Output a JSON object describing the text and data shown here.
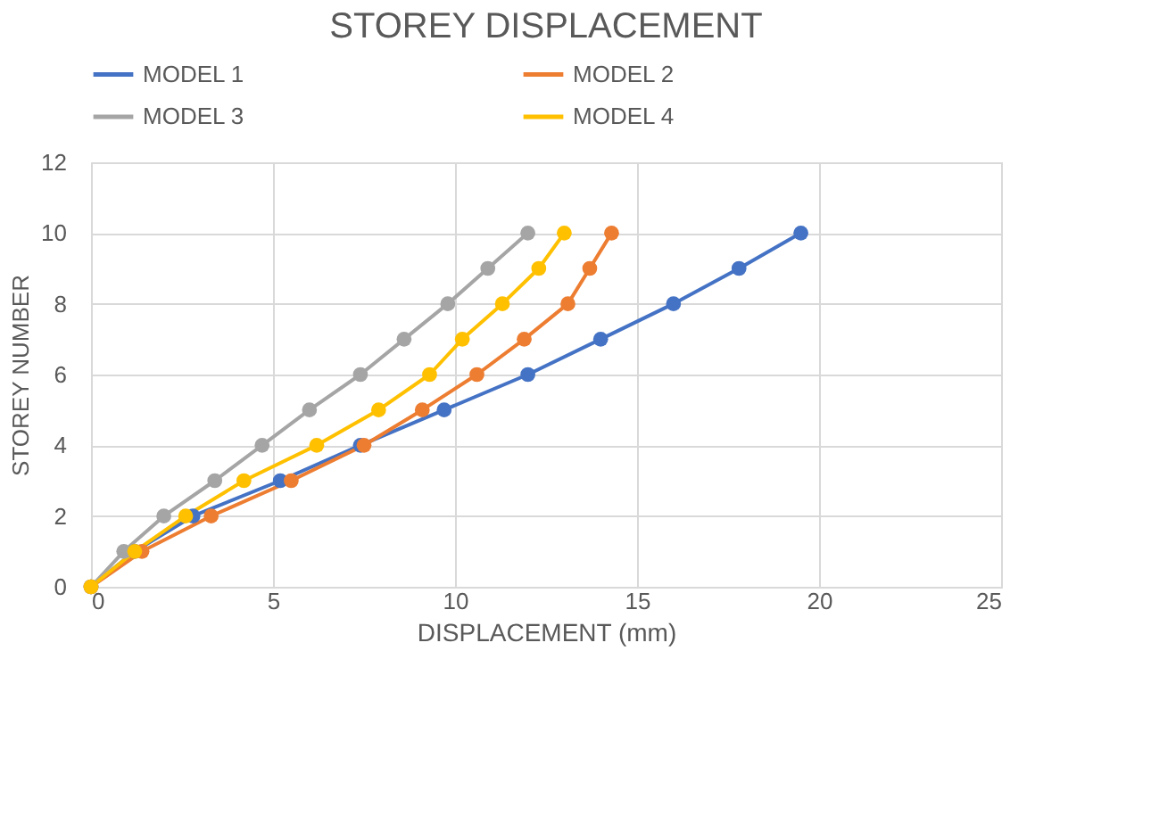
{
  "chart_data": {
    "type": "line",
    "title": "STOREY DISPLACEMENT",
    "xlabel": "DISPLACEMENT  (mm)",
    "ylabel": "STOREY NUMBER",
    "xlim": [
      0,
      25
    ],
    "xticks": [
      0,
      5,
      10,
      15,
      20,
      25
    ],
    "ylim": [
      0,
      12
    ],
    "yticks": [
      0,
      2,
      4,
      6,
      8,
      10,
      12
    ],
    "grid": true,
    "legend": "top",
    "marker": "circle",
    "line_style": "solid",
    "series": [
      {
        "name": "MODEL 1",
        "color": "#4472c4",
        "x": [
          0,
          1.2,
          2.8,
          5.2,
          7.4,
          9.7,
          12.0,
          14.0,
          16.0,
          17.8,
          19.5
        ],
        "values": [
          0,
          1,
          2,
          3,
          4,
          5,
          6,
          7,
          8,
          9,
          10
        ]
      },
      {
        "name": "MODEL 2",
        "color": "#ed7d31",
        "x": [
          0,
          1.4,
          3.3,
          5.5,
          7.5,
          9.1,
          10.6,
          11.9,
          13.1,
          13.7,
          14.3
        ],
        "values": [
          0,
          1,
          2,
          3,
          4,
          5,
          6,
          7,
          8,
          9,
          10
        ]
      },
      {
        "name": "MODEL 3",
        "color": "#a5a5a5",
        "x": [
          0,
          0.9,
          2.0,
          3.4,
          4.7,
          6.0,
          7.4,
          8.6,
          9.8,
          10.9,
          12.0
        ],
        "values": [
          0,
          1,
          2,
          3,
          4,
          5,
          6,
          7,
          8,
          9,
          10
        ]
      },
      {
        "name": "MODEL 4",
        "color": "#ffc000",
        "x": [
          0,
          1.2,
          2.6,
          4.2,
          6.2,
          7.9,
          9.3,
          10.2,
          11.3,
          12.3,
          13.0
        ],
        "values": [
          0,
          1,
          2,
          3,
          4,
          5,
          6,
          7,
          8,
          9,
          10
        ]
      }
    ]
  }
}
